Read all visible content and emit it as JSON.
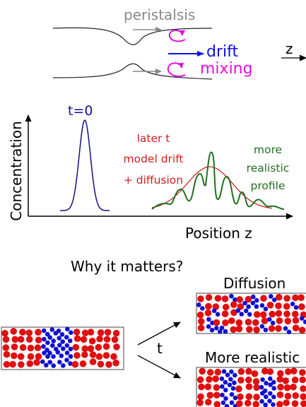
{
  "top": {
    "peristalsis": "peristalsis",
    "drift": "drift",
    "mixing": "mixing",
    "z": "z"
  },
  "plot": {
    "y_label": "Concentration",
    "x_label": "Position z",
    "t0": "t=0",
    "red_label": [
      "later t",
      "model drift",
      "+ diffusion"
    ],
    "green_label": [
      "more",
      "realistic",
      "profile"
    ]
  },
  "bottom": {
    "title": "Why it matters?",
    "t": "t",
    "diffusion": "Diffusion",
    "realistic": "More realistic"
  }
}
